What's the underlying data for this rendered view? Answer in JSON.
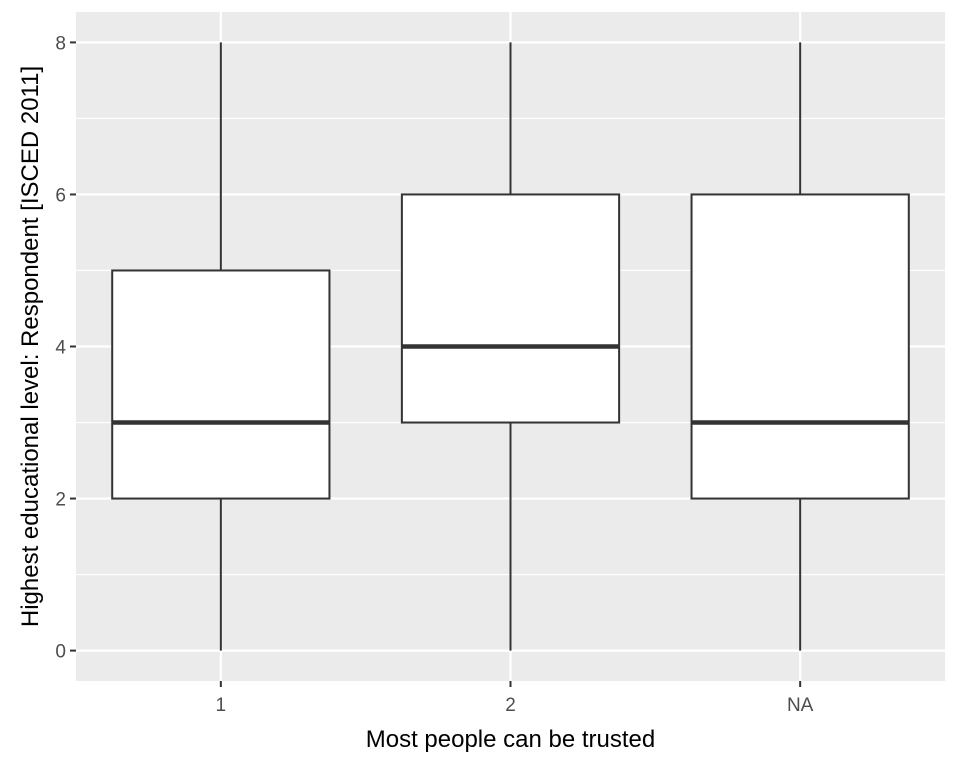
{
  "chart_data": {
    "type": "boxplot",
    "title": "",
    "xlabel": "Most people can be trusted",
    "ylabel": "Highest educational level: Respondent [ISCED 2011]",
    "categories": [
      "1",
      "2",
      "NA"
    ],
    "boxes": [
      {
        "category": "1",
        "min": 0,
        "q1": 2,
        "median": 3,
        "q3": 5,
        "max": 8
      },
      {
        "category": "2",
        "min": 0,
        "q1": 3,
        "median": 4,
        "q3": 6,
        "max": 8
      },
      {
        "category": "NA",
        "min": 0,
        "q1": 2,
        "median": 3,
        "q3": 6,
        "max": 8
      }
    ],
    "ylim": [
      -0.4,
      8.4
    ],
    "yticks": [
      0,
      2,
      4,
      6,
      8
    ],
    "grid": true,
    "legend": "none",
    "colors": {
      "panel_background": "#ebebeb",
      "grid_line": "#ffffff",
      "box_fill": "#ffffff",
      "box_line": "#333333",
      "tick_text": "#4d4d4d"
    }
  }
}
